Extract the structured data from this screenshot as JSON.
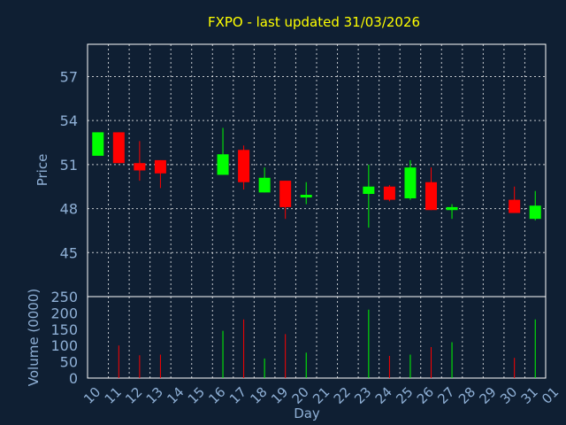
{
  "chart_data": {
    "type": "candlestick",
    "title": "FXPO - last updated 31/03/2026",
    "xlabel": "Day",
    "price_ylabel": "Price",
    "volume_ylabel": "Volume (0000)",
    "x_ticks": [
      "10",
      "11",
      "12",
      "13",
      "14",
      "15",
      "16",
      "17",
      "18",
      "19",
      "20",
      "21",
      "22",
      "23",
      "24",
      "25",
      "26",
      "27",
      "28",
      "29",
      "30",
      "31",
      "01"
    ],
    "price_ticks": [
      "45",
      "48",
      "51",
      "54",
      "57"
    ],
    "price_ylim": [
      42.0,
      59.2
    ],
    "volume_ticks": [
      "0",
      "50",
      "100",
      "150",
      "200",
      "250"
    ],
    "volume_ylim": [
      0,
      250
    ],
    "colors": {
      "up": "#00ff00",
      "down": "#ff0000",
      "title": "#ffff00",
      "axis": "#8fb0d6",
      "background": "#0f1f33"
    },
    "candles": [
      {
        "day": 0,
        "open": 51.6,
        "close": 53.2,
        "high": 53.2,
        "low": 51.6,
        "volume": 0
      },
      {
        "day": 1,
        "open": 53.2,
        "close": 51.1,
        "high": 53.2,
        "low": 51.1,
        "volume": 100
      },
      {
        "day": 2,
        "open": 51.1,
        "close": 50.6,
        "high": 52.6,
        "low": 49.9,
        "volume": 70
      },
      {
        "day": 3,
        "open": 51.3,
        "close": 50.4,
        "high": 51.3,
        "low": 49.4,
        "volume": 72
      },
      {
        "day": 6,
        "open": 50.3,
        "close": 51.7,
        "high": 53.5,
        "low": 50.3,
        "volume": 145
      },
      {
        "day": 7,
        "open": 52.0,
        "close": 49.8,
        "high": 52.3,
        "low": 49.3,
        "volume": 180
      },
      {
        "day": 8,
        "open": 49.1,
        "close": 50.1,
        "high": 50.8,
        "low": 49.1,
        "volume": 60
      },
      {
        "day": 9,
        "open": 49.9,
        "close": 48.1,
        "high": 49.9,
        "low": 47.3,
        "volume": 135
      },
      {
        "day": 10,
        "open": 48.8,
        "close": 48.9,
        "high": 49.8,
        "low": 48.3,
        "volume": 78
      },
      {
        "day": 13,
        "open": 49.0,
        "close": 49.5,
        "high": 51.0,
        "low": 46.7,
        "volume": 210
      },
      {
        "day": 14,
        "open": 49.5,
        "close": 48.6,
        "high": 49.6,
        "low": 48.5,
        "volume": 68
      },
      {
        "day": 15,
        "open": 48.7,
        "close": 50.8,
        "high": 51.3,
        "low": 48.6,
        "volume": 72
      },
      {
        "day": 16,
        "open": 49.8,
        "close": 47.9,
        "high": 50.8,
        "low": 47.9,
        "volume": 95
      },
      {
        "day": 17,
        "open": 47.9,
        "close": 48.1,
        "high": 48.3,
        "low": 47.3,
        "volume": 110
      },
      {
        "day": 20,
        "open": 48.6,
        "close": 47.7,
        "high": 49.5,
        "low": 47.7,
        "volume": 62
      },
      {
        "day": 21,
        "open": 47.3,
        "close": 48.2,
        "high": 49.2,
        "low": 47.2,
        "volume": 180
      }
    ]
  }
}
